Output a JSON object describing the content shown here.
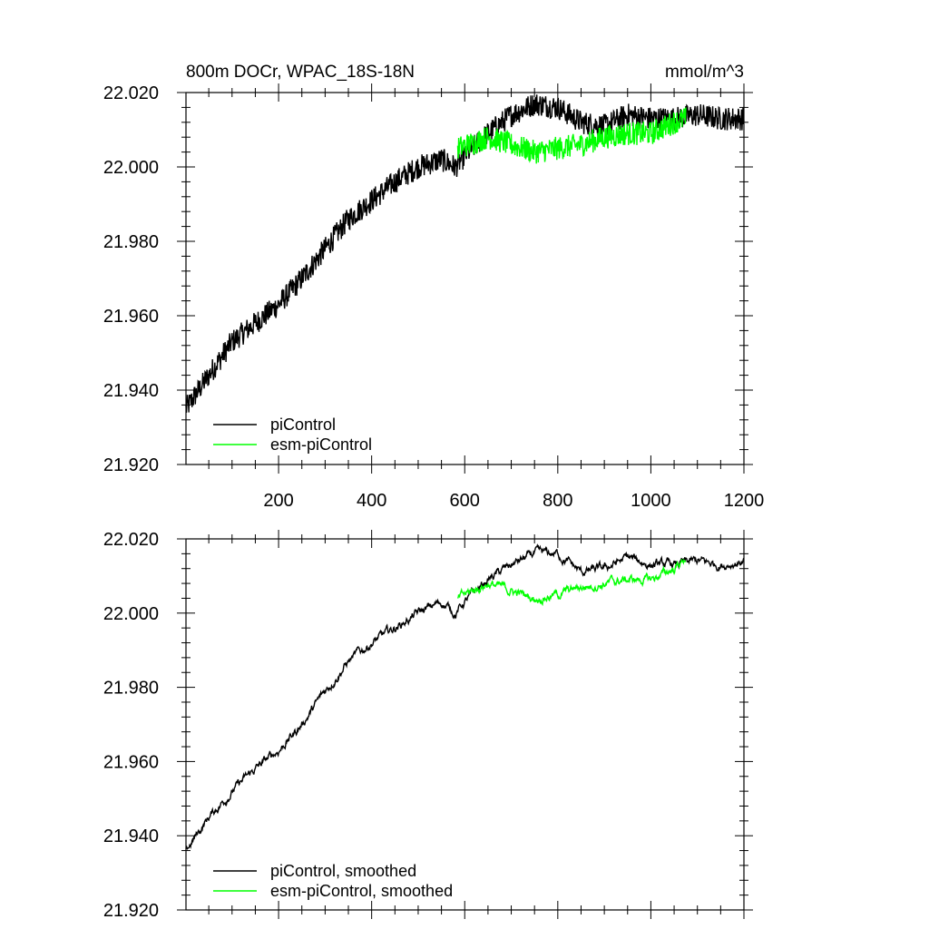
{
  "chart_data": [
    {
      "type": "line",
      "title": "800m DOCr, WPAC_18S-18N",
      "units": "mmol/m^3",
      "xlim": [
        1,
        1200
      ],
      "ylim": [
        21.92,
        22.02
      ],
      "x_ticks": [
        200,
        400,
        600,
        800,
        1000,
        1200
      ],
      "x_tick_labels": [
        "200",
        "400",
        "600",
        "800",
        "1000",
        "1200"
      ],
      "y_ticks": [
        21.92,
        21.94,
        21.96,
        21.98,
        22.0,
        22.02
      ],
      "y_tick_labels": [
        "21.920",
        "21.940",
        "21.960",
        "21.980",
        "22.000",
        "22.020"
      ],
      "legend_position": "bottom-left",
      "series": [
        {
          "name": "piControl",
          "color": "#000000",
          "noise": 0.0032,
          "x": [
            1,
            50,
            100,
            150,
            200,
            250,
            300,
            350,
            400,
            450,
            500,
            550,
            580,
            600,
            650,
            700,
            750,
            800,
            850,
            900,
            950,
            1000,
            1050,
            1100,
            1150,
            1200
          ],
          "y": [
            21.935,
            21.944,
            21.953,
            21.958,
            21.963,
            21.97,
            21.978,
            21.986,
            21.991,
            21.996,
            22.0,
            22.002,
            22.0,
            22.003,
            22.009,
            22.014,
            22.017,
            22.016,
            22.012,
            22.011,
            22.014,
            22.013,
            22.013,
            22.014,
            22.013,
            22.013
          ]
        },
        {
          "name": "esm-piControl",
          "color": "#00ff00",
          "noise": 0.0032,
          "x": [
            585,
            650,
            700,
            750,
            800,
            850,
            900,
            950,
            1000,
            1050,
            1075
          ],
          "y": [
            22.005,
            22.008,
            22.006,
            22.004,
            22.005,
            22.006,
            22.008,
            22.009,
            22.009,
            22.012,
            22.013
          ]
        }
      ]
    },
    {
      "type": "line",
      "title": "",
      "xlim": [
        1,
        1200
      ],
      "ylim": [
        21.92,
        22.02
      ],
      "x_ticks": [
        200,
        400,
        600,
        800,
        1000,
        1200
      ],
      "y_ticks": [
        21.92,
        21.94,
        21.96,
        21.98,
        22.0,
        22.02
      ],
      "y_tick_labels": [
        "21.920",
        "21.940",
        "21.960",
        "21.980",
        "22.000",
        "22.020"
      ],
      "legend_position": "bottom-left",
      "series": [
        {
          "name": "piControl, smoothed",
          "color": "#000000",
          "noise": 0.0012,
          "x": [
            1,
            50,
            100,
            150,
            200,
            250,
            300,
            350,
            400,
            450,
            500,
            550,
            580,
            600,
            650,
            700,
            750,
            800,
            850,
            900,
            950,
            1000,
            1050,
            1100,
            1150,
            1200
          ],
          "y": [
            21.936,
            21.945,
            21.952,
            21.958,
            21.963,
            21.97,
            21.979,
            21.987,
            21.992,
            21.996,
            22.0,
            22.003,
            22.0,
            22.003,
            22.009,
            22.013,
            22.016,
            22.016,
            22.011,
            22.012,
            22.015,
            22.013,
            22.013,
            22.014,
            22.013,
            22.014
          ]
        },
        {
          "name": "esm-piControl, smoothed",
          "color": "#00ff00",
          "noise": 0.0012,
          "x": [
            585,
            650,
            700,
            750,
            800,
            850,
            900,
            950,
            1000,
            1050,
            1075
          ],
          "y": [
            22.004,
            22.008,
            22.006,
            22.004,
            22.005,
            22.007,
            22.008,
            22.009,
            22.009,
            22.012,
            22.015
          ]
        }
      ]
    }
  ]
}
